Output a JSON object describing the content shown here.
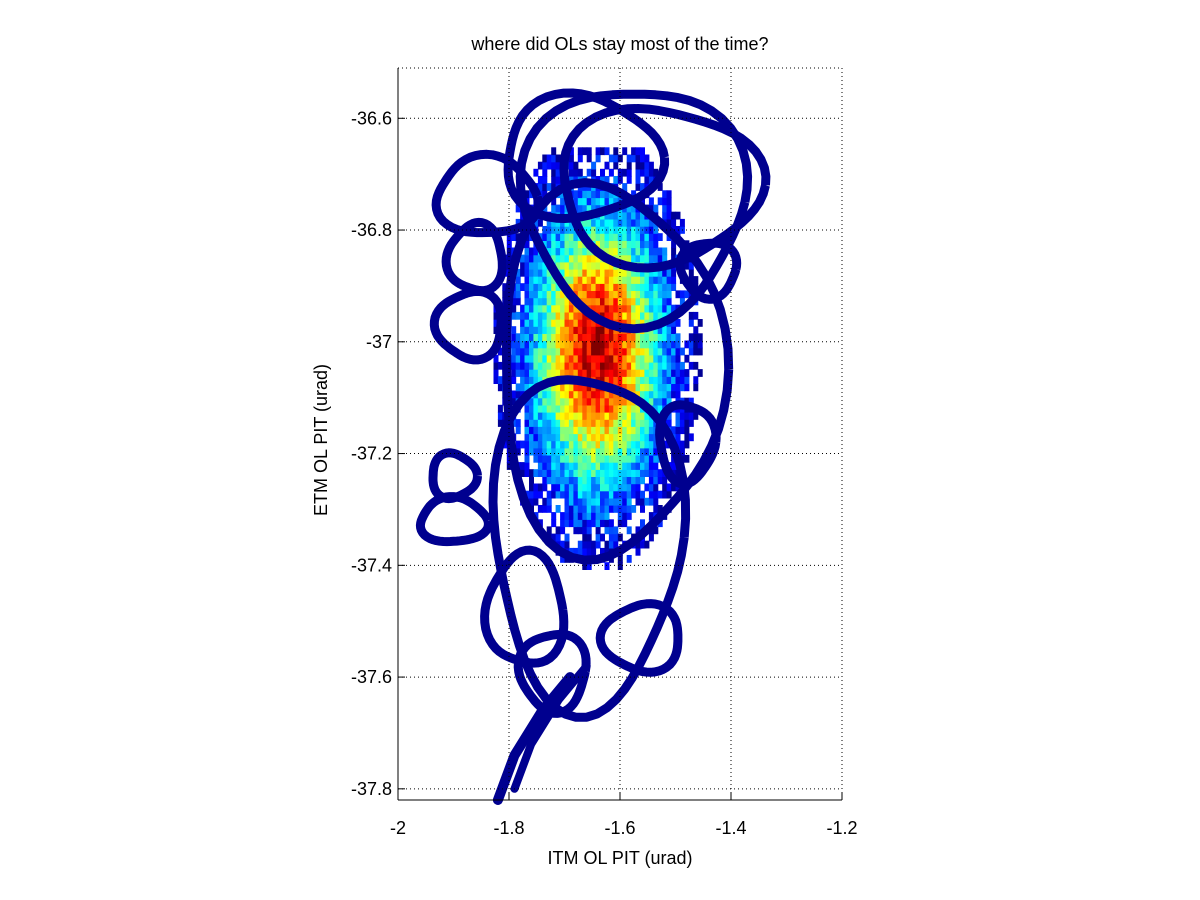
{
  "chart_data": {
    "type": "heatmap",
    "title": "where did OLs stay most of the time?",
    "xlabel": "ITM OL PIT (urad)",
    "ylabel": "ETM OL PIT (urad)",
    "xlim": [
      -2.0,
      -1.2
    ],
    "ylim": [
      -37.82,
      -36.51
    ],
    "x_ticks": [
      -2.0,
      -1.8,
      -1.6,
      -1.4,
      -1.2
    ],
    "x_tick_labels": [
      "-2",
      "-1.8",
      "-1.6",
      "-1.4",
      "-1.2"
    ],
    "y_ticks": [
      -36.6,
      -36.8,
      -37.0,
      -37.2,
      -37.4,
      -37.6,
      -37.8
    ],
    "y_tick_labels": [
      "-36.6",
      "-36.8",
      "-37",
      "-37.2",
      "-37.4",
      "-37.6",
      "-37.8"
    ],
    "grid": true,
    "colormap": "jet",
    "density_peak": {
      "x": -1.645,
      "y": -37.02
    },
    "core_spread": {
      "sx": 0.075,
      "sy": 0.16
    },
    "trajectory_loops": [
      {
        "cx": -1.575,
        "cy": -36.75,
        "rx": 0.2,
        "ry": 0.21
      },
      {
        "cx": -1.53,
        "cy": -36.72,
        "rx": 0.18,
        "ry": 0.14
      },
      {
        "cx": -1.67,
        "cy": -36.67,
        "rx": 0.14,
        "ry": 0.11
      },
      {
        "cx": -1.84,
        "cy": -36.74,
        "rx": 0.09,
        "ry": 0.07
      },
      {
        "cx": -1.86,
        "cy": -36.85,
        "rx": 0.05,
        "ry": 0.06
      },
      {
        "cx": -1.87,
        "cy": -36.97,
        "rx": 0.06,
        "ry": 0.06
      },
      {
        "cx": -1.44,
        "cy": -36.87,
        "rx": 0.05,
        "ry": 0.05
      },
      {
        "cx": -1.48,
        "cy": -37.18,
        "rx": 0.05,
        "ry": 0.07
      },
      {
        "cx": -1.9,
        "cy": -37.24,
        "rx": 0.04,
        "ry": 0.04
      },
      {
        "cx": -1.9,
        "cy": -37.32,
        "rx": 0.06,
        "ry": 0.04
      },
      {
        "cx": -1.77,
        "cy": -37.48,
        "rx": 0.07,
        "ry": 0.1
      },
      {
        "cx": -1.56,
        "cy": -37.53,
        "rx": 0.07,
        "ry": 0.06
      },
      {
        "cx": -1.72,
        "cy": -37.59,
        "rx": 0.06,
        "ry": 0.07
      },
      {
        "cx": -1.66,
        "cy": -37.35,
        "rx": 0.17,
        "ry": 0.3
      },
      {
        "cx": -1.62,
        "cy": -37.05,
        "rx": 0.2,
        "ry": 0.33
      }
    ],
    "trajectory_tail": [
      [
        -1.69,
        -37.6
      ],
      [
        -1.74,
        -37.66
      ],
      [
        -1.79,
        -37.74
      ],
      [
        -1.82,
        -37.82
      ]
    ]
  }
}
